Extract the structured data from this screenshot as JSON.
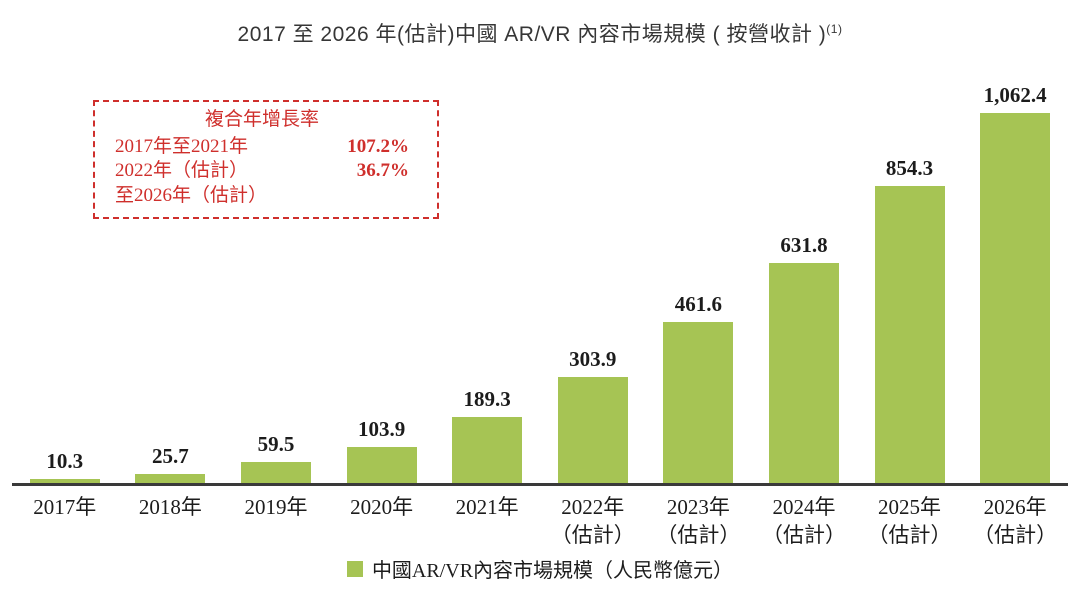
{
  "title": {
    "text": "2017 至 2026 年(估計)中國 AR/VR 內容市場規模 ( 按營收計 )",
    "superscript": "(1)"
  },
  "cagr_box": {
    "title": "複合年增長率",
    "rows": [
      {
        "label": "2017年至2021年",
        "value": "107.2%"
      },
      {
        "label": "2022年（估計）",
        "value": "36.7%"
      },
      {
        "label": "至2026年（估計）",
        "value": ""
      }
    ],
    "accent_color": "#cf2f2c"
  },
  "legend": {
    "label": "中國AR/VR內容市場規模（人民幣億元）",
    "swatch_color": "#a6c454"
  },
  "chart_data": {
    "type": "bar",
    "title": "2017 至 2026 年(估計)中國 AR/VR 內容市場規模 ( 按營收計 )(1)",
    "categories": [
      "2017年",
      "2018年",
      "2019年",
      "2020年",
      "2021年",
      "2022年\n（估計）",
      "2023年\n（估計）",
      "2024年\n（估計）",
      "2025年\n（估計）",
      "2026年\n（估計）"
    ],
    "values": [
      10.3,
      25.7,
      59.5,
      103.9,
      189.3,
      303.9,
      461.6,
      631.8,
      854.3,
      1062.4
    ],
    "value_labels": [
      "10.3",
      "25.7",
      "59.5",
      "103.9",
      "189.3",
      "303.9",
      "461.6",
      "631.8",
      "854.3",
      "1,062.4"
    ],
    "series_name": "中國AR/VR內容市場規模（人民幣億元）",
    "bar_color": "#a6c454",
    "axis_color": "#3a3a3a",
    "xlabel": "",
    "ylabel": "",
    "ylim": [
      0,
      1100
    ],
    "grid": false,
    "legend_position": "bottom"
  }
}
